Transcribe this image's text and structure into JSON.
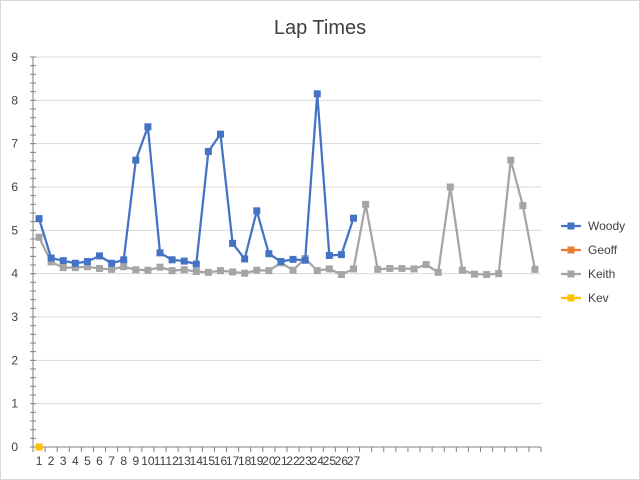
{
  "chart_data": {
    "type": "line",
    "title": "Lap Times",
    "xlabel": "",
    "ylabel": "",
    "ylim": [
      0,
      9
    ],
    "y_ticks": [
      0,
      1,
      2,
      3,
      4,
      5,
      6,
      7,
      8,
      9
    ],
    "x_tick_labels": [
      "1",
      "2",
      "3",
      "4",
      "5",
      "6",
      "7",
      "8",
      "9",
      "10",
      "11",
      "12",
      "13",
      "14",
      "15",
      "16",
      "17",
      "18",
      "19",
      "20",
      "21",
      "22",
      "23",
      "24",
      "25",
      "26",
      "27"
    ],
    "x_count": 42,
    "grid": true,
    "legend": "right",
    "series": [
      {
        "name": "Woody",
        "color": "#4472c4",
        "values": [
          5.27,
          4.36,
          4.3,
          4.24,
          4.28,
          4.41,
          4.24,
          4.32,
          6.62,
          7.39,
          4.48,
          4.32,
          4.29,
          4.22,
          6.82,
          7.22,
          4.7,
          4.34,
          5.45,
          4.46,
          4.28,
          4.33,
          4.31,
          8.15,
          4.42,
          4.44,
          5.28
        ]
      },
      {
        "name": "Geoff",
        "color": "#ed7d31",
        "values": [
          0
        ]
      },
      {
        "name": "Keith",
        "color": "#a5a5a5",
        "values": [
          4.84,
          4.27,
          4.14,
          4.14,
          4.16,
          4.12,
          4.1,
          4.16,
          4.09,
          4.08,
          4.15,
          4.07,
          4.09,
          4.05,
          4.03,
          4.07,
          4.04,
          4.01,
          4.08,
          4.07,
          4.25,
          4.08,
          4.35,
          4.07,
          4.11,
          3.98,
          4.11,
          5.6,
          4.1,
          4.12,
          4.12,
          4.11,
          4.21,
          4.03,
          6.0,
          4.08,
          3.99,
          3.98,
          4.0,
          6.62,
          5.57,
          4.1
        ]
      },
      {
        "name": "Kev",
        "color": "#ffc000",
        "values": [
          0
        ]
      }
    ]
  }
}
